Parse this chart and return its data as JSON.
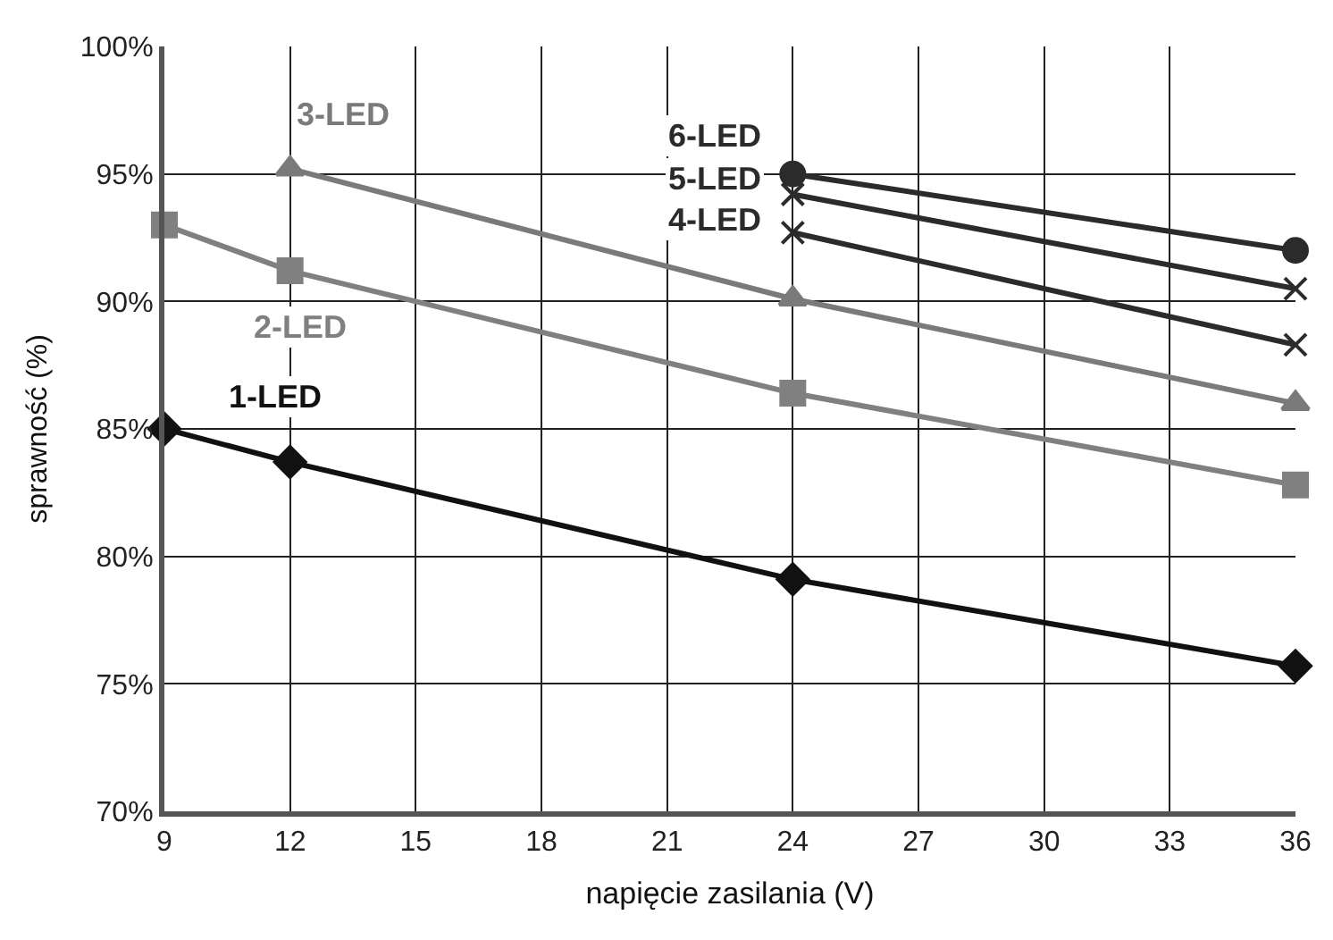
{
  "chart_data": {
    "type": "line",
    "xlabel": "napięcie zasilania (V)",
    "ylabel": "sprawność (%)",
    "series": [
      {
        "name": "1-LED",
        "color": "#111111",
        "marker": "diamond",
        "x": [
          9,
          12,
          24,
          36
        ],
        "values": [
          85.0,
          83.7,
          79.1,
          75.7
        ]
      },
      {
        "name": "2-LED",
        "color": "#808080",
        "marker": "square",
        "x": [
          9,
          12,
          24,
          36
        ],
        "values": [
          93.0,
          91.2,
          86.4,
          82.8
        ]
      },
      {
        "name": "3-LED",
        "color": "#7a7a7a",
        "marker": "triangle",
        "x": [
          12,
          24,
          36
        ],
        "values": [
          95.2,
          90.1,
          86.0
        ]
      },
      {
        "name": "4-LED",
        "color": "#2b2b2b",
        "marker": "cross",
        "x": [
          24,
          36
        ],
        "values": [
          92.7,
          88.3
        ]
      },
      {
        "name": "5-LED",
        "color": "#2b2b2b",
        "marker": "cross",
        "x": [
          24,
          36
        ],
        "values": [
          94.2,
          90.5
        ]
      },
      {
        "name": "6-LED",
        "color": "#2b2b2b",
        "marker": "circle",
        "x": [
          24,
          36
        ],
        "values": [
          95.0,
          92.0
        ]
      }
    ],
    "xlim": [
      9,
      36
    ],
    "xticks": [
      9,
      12,
      15,
      18,
      21,
      24,
      27,
      30,
      33,
      36
    ],
    "ylim": [
      70,
      100
    ],
    "yticks": [
      {
        "value": 70,
        "label": "70%"
      },
      {
        "value": 75,
        "label": "75%"
      },
      {
        "value": 80,
        "label": "80%"
      },
      {
        "value": 85,
        "label": "85%"
      },
      {
        "value": 90,
        "label": "90%"
      },
      {
        "value": 95,
        "label": "95%"
      },
      {
        "value": 100,
        "label": "100%"
      }
    ],
    "grid": true,
    "legend": false,
    "line_style": "solid"
  }
}
